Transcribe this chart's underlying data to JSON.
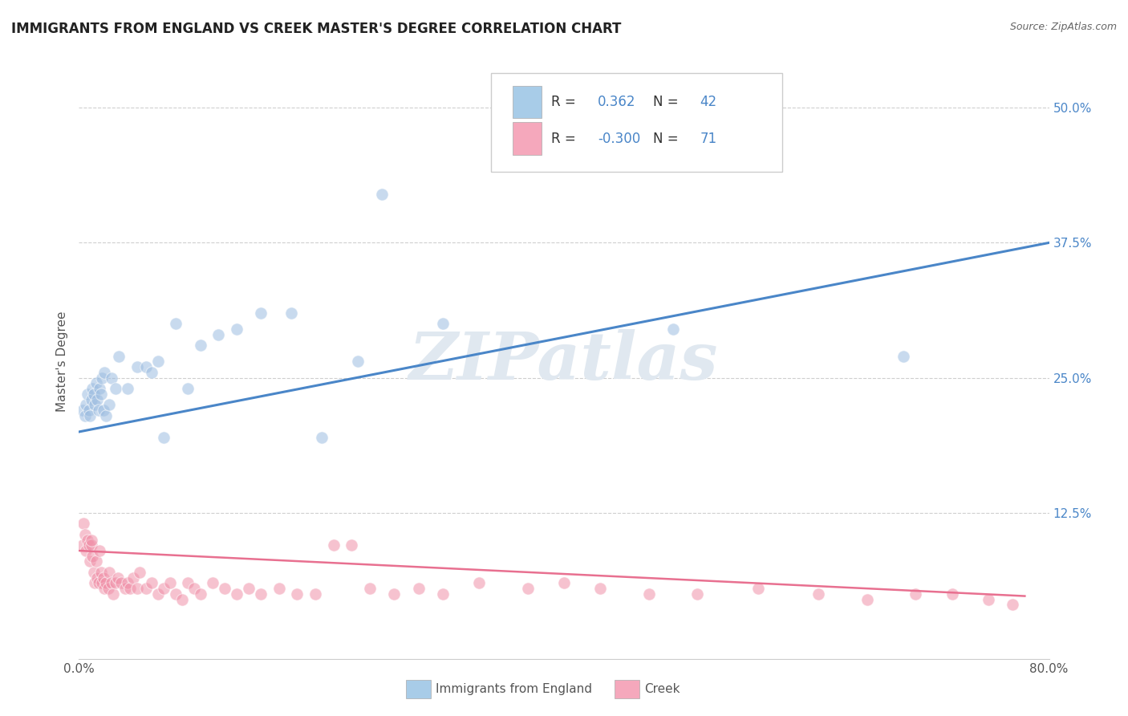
{
  "title": "IMMIGRANTS FROM ENGLAND VS CREEK MASTER'S DEGREE CORRELATION CHART",
  "source": "Source: ZipAtlas.com",
  "xlabel_blue": "Immigrants from England",
  "xlabel_pink": "Creek",
  "ylabel": "Master's Degree",
  "watermark": "ZIPatlas",
  "legend_blue_r": "0.362",
  "legend_blue_n": "42",
  "legend_pink_r": "-0.300",
  "legend_pink_n": "71",
  "xmin": 0.0,
  "xmax": 0.8,
  "ymin": -0.01,
  "ymax": 0.54,
  "yticks": [
    0.125,
    0.25,
    0.375,
    0.5
  ],
  "ytick_labels": [
    "12.5%",
    "25.0%",
    "37.5%",
    "50.0%"
  ],
  "xticks": [
    0.0,
    0.8
  ],
  "xtick_labels": [
    "0.0%",
    "80.0%"
  ],
  "gridline_y": [
    0.125,
    0.25,
    0.375,
    0.5
  ],
  "blue_scatter_x": [
    0.003,
    0.005,
    0.006,
    0.007,
    0.008,
    0.009,
    0.01,
    0.011,
    0.012,
    0.013,
    0.014,
    0.015,
    0.016,
    0.017,
    0.018,
    0.019,
    0.02,
    0.021,
    0.022,
    0.025,
    0.027,
    0.03,
    0.033,
    0.04,
    0.048,
    0.055,
    0.06,
    0.065,
    0.07,
    0.08,
    0.09,
    0.1,
    0.115,
    0.13,
    0.15,
    0.175,
    0.2,
    0.23,
    0.25,
    0.3,
    0.49,
    0.68
  ],
  "blue_scatter_y": [
    0.22,
    0.215,
    0.225,
    0.235,
    0.22,
    0.215,
    0.23,
    0.24,
    0.235,
    0.225,
    0.245,
    0.23,
    0.22,
    0.24,
    0.235,
    0.25,
    0.22,
    0.255,
    0.215,
    0.225,
    0.25,
    0.24,
    0.27,
    0.24,
    0.26,
    0.26,
    0.255,
    0.265,
    0.195,
    0.3,
    0.24,
    0.28,
    0.29,
    0.295,
    0.31,
    0.31,
    0.195,
    0.265,
    0.42,
    0.3,
    0.295,
    0.27
  ],
  "pink_scatter_x": [
    0.003,
    0.004,
    0.005,
    0.006,
    0.007,
    0.008,
    0.009,
    0.01,
    0.01,
    0.011,
    0.012,
    0.013,
    0.014,
    0.015,
    0.016,
    0.017,
    0.018,
    0.019,
    0.02,
    0.021,
    0.022,
    0.024,
    0.025,
    0.027,
    0.028,
    0.03,
    0.032,
    0.035,
    0.038,
    0.04,
    0.042,
    0.045,
    0.048,
    0.05,
    0.055,
    0.06,
    0.065,
    0.07,
    0.075,
    0.08,
    0.085,
    0.09,
    0.095,
    0.1,
    0.11,
    0.12,
    0.13,
    0.14,
    0.15,
    0.165,
    0.18,
    0.195,
    0.21,
    0.225,
    0.24,
    0.26,
    0.28,
    0.3,
    0.33,
    0.37,
    0.4,
    0.43,
    0.47,
    0.51,
    0.56,
    0.61,
    0.65,
    0.69,
    0.72,
    0.75,
    0.77
  ],
  "pink_scatter_y": [
    0.095,
    0.115,
    0.105,
    0.09,
    0.1,
    0.095,
    0.08,
    0.095,
    0.1,
    0.085,
    0.07,
    0.06,
    0.08,
    0.065,
    0.06,
    0.09,
    0.07,
    0.06,
    0.065,
    0.055,
    0.06,
    0.055,
    0.07,
    0.06,
    0.05,
    0.06,
    0.065,
    0.06,
    0.055,
    0.06,
    0.055,
    0.065,
    0.055,
    0.07,
    0.055,
    0.06,
    0.05,
    0.055,
    0.06,
    0.05,
    0.045,
    0.06,
    0.055,
    0.05,
    0.06,
    0.055,
    0.05,
    0.055,
    0.05,
    0.055,
    0.05,
    0.05,
    0.095,
    0.095,
    0.055,
    0.05,
    0.055,
    0.05,
    0.06,
    0.055,
    0.06,
    0.055,
    0.05,
    0.05,
    0.055,
    0.05,
    0.045,
    0.05,
    0.05,
    0.045,
    0.04
  ],
  "blue_line_x": [
    0.0,
    0.8
  ],
  "blue_line_y": [
    0.2,
    0.375
  ],
  "pink_line_x": [
    0.0,
    0.78
  ],
  "pink_line_y": [
    0.09,
    0.048
  ],
  "blue_color": "#A8CCE8",
  "pink_color": "#F5A8BC",
  "blue_line_color": "#4A86C8",
  "pink_line_color": "#E87090",
  "blue_dot_color": "#9BBCE0",
  "pink_dot_color": "#F090A8",
  "background_color": "#FFFFFF",
  "grid_color": "#BBBBBB",
  "title_color": "#222222",
  "watermark_color": "#E0E8F0",
  "axis_color": "#CCCCCC",
  "ytick_color": "#4A86C8"
}
